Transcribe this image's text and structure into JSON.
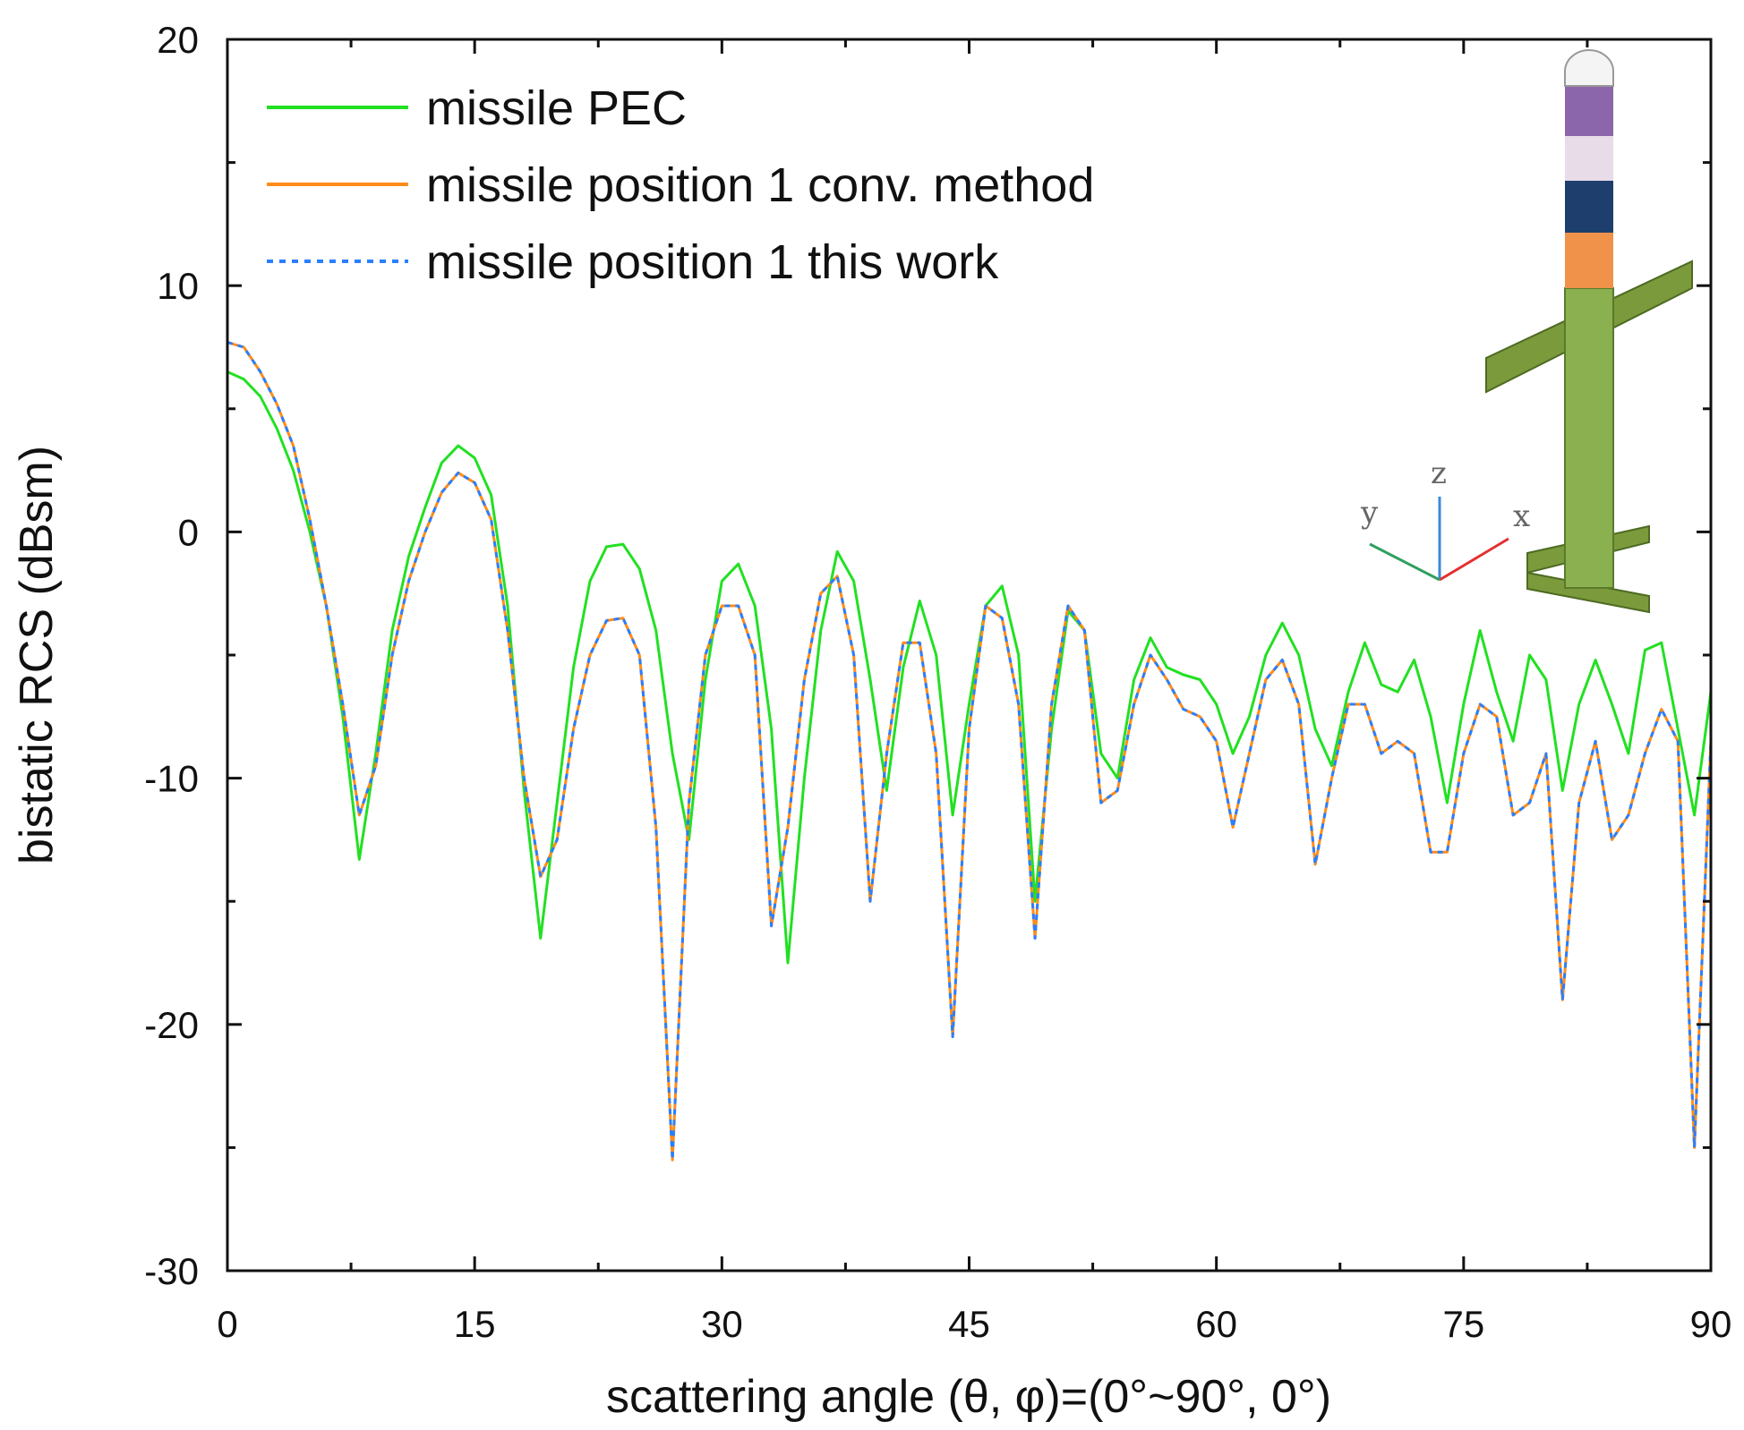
{
  "chart_data": {
    "type": "line",
    "title": "",
    "xlabel": "scattering angle (θ, φ)=(0°~90°, 0°)",
    "ylabel": "bistatic RCS (dBsm)",
    "xlim": [
      0,
      90
    ],
    "ylim": [
      -30,
      20
    ],
    "xticks": [
      0,
      15,
      30,
      45,
      60,
      75,
      90
    ],
    "yticks": [
      -30,
      -20,
      -10,
      0,
      10,
      20
    ],
    "grid": false,
    "legend_position": "top-left",
    "x": [
      0,
      1,
      2,
      3,
      4,
      5,
      6,
      7,
      8,
      9,
      10,
      11,
      12,
      13,
      14,
      15,
      16,
      17,
      18,
      19,
      20,
      21,
      22,
      23,
      24,
      25,
      26,
      27,
      28,
      29,
      30,
      31,
      32,
      33,
      34,
      35,
      36,
      37,
      38,
      39,
      40,
      41,
      42,
      43,
      44,
      45,
      46,
      47,
      48,
      49,
      50,
      51,
      52,
      53,
      54,
      55,
      56,
      57,
      58,
      59,
      60,
      61,
      62,
      63,
      64,
      65,
      66,
      67,
      68,
      69,
      70,
      71,
      72,
      73,
      74,
      75,
      76,
      77,
      78,
      79,
      80,
      81,
      82,
      83,
      84,
      85,
      86,
      87,
      88,
      89,
      90
    ],
    "series": [
      {
        "name": "missile PEC",
        "color": "#22e022",
        "dash": "solid",
        "values": [
          6.5,
          6.2,
          5.5,
          4.2,
          2.5,
          0,
          -3,
          -7.5,
          -13.3,
          -9,
          -4,
          -1,
          1,
          2.8,
          3.5,
          3,
          1.5,
          -3,
          -10.5,
          -16.5,
          -11,
          -5.5,
          -2,
          -0.6,
          -0.5,
          -1.5,
          -4,
          -9,
          -12.5,
          -6,
          -2,
          -1.3,
          -3,
          -8,
          -17.5,
          -10,
          -4,
          -0.8,
          -2,
          -6,
          -10.5,
          -5.5,
          -2.8,
          -5,
          -11.5,
          -7,
          -3,
          -2.2,
          -5,
          -15,
          -8,
          -3.2,
          -4,
          -9,
          -10,
          -6,
          -4.3,
          -5.5,
          -5.8,
          -6,
          -7,
          -9,
          -7.5,
          -5,
          -3.7,
          -5,
          -8,
          -9.5,
          -6.5,
          -4.5,
          -6.2,
          -6.5,
          -5.2,
          -7.5,
          -11,
          -7,
          -4,
          -6.5,
          -8.5,
          -5,
          -6,
          -10.5,
          -7,
          -5.2,
          -7,
          -9,
          -4.8,
          -4.5,
          -8,
          -11.5,
          -6.5
        ]
      },
      {
        "name": "missile position 1 conv. method",
        "color": "#ff8c1a",
        "dash": "solid",
        "values": [
          7.7,
          7.5,
          6.5,
          5.2,
          3.5,
          0.5,
          -3,
          -7,
          -11.5,
          -9.5,
          -5,
          -2,
          0,
          1.6,
          2.4,
          2,
          0.5,
          -4,
          -10,
          -14,
          -12.5,
          -8,
          -5,
          -3.6,
          -3.5,
          -5,
          -12,
          -25.5,
          -11,
          -5,
          -3,
          -3,
          -5,
          -16,
          -12,
          -6,
          -2.5,
          -1.8,
          -5,
          -15,
          -9,
          -4.5,
          -4.5,
          -9,
          -20.5,
          -8,
          -3,
          -3.5,
          -7,
          -16.5,
          -7,
          -3,
          -4,
          -11,
          -10.5,
          -7,
          -5,
          -6,
          -7.2,
          -7.5,
          -8.5,
          -12,
          -9,
          -6,
          -5.2,
          -7,
          -13.5,
          -10,
          -7,
          -7,
          -9,
          -8.5,
          -9,
          -13,
          -13,
          -9,
          -7,
          -7.5,
          -11.5,
          -11,
          -9,
          -19,
          -11,
          -8.5,
          -12.5,
          -11.5,
          -9,
          -7.2,
          -8.5,
          -25,
          -8.5
        ]
      },
      {
        "name": "missile position 1 this work",
        "color": "#2a7fff",
        "dash": "dotted",
        "values": [
          7.7,
          7.5,
          6.5,
          5.2,
          3.5,
          0.5,
          -3,
          -7,
          -11.5,
          -9.5,
          -5,
          -2,
          0,
          1.6,
          2.4,
          2,
          0.5,
          -4,
          -10,
          -14,
          -12.5,
          -8,
          -5,
          -3.6,
          -3.5,
          -5,
          -12,
          -25.5,
          -11,
          -5,
          -3,
          -3,
          -5,
          -16,
          -12,
          -6,
          -2.5,
          -1.8,
          -5,
          -15,
          -9,
          -4.5,
          -4.5,
          -9,
          -20.5,
          -8,
          -3,
          -3.5,
          -7,
          -16.5,
          -7,
          -3,
          -4,
          -11,
          -10.5,
          -7,
          -5,
          -6,
          -7.2,
          -7.5,
          -8.5,
          -12,
          -9,
          -6,
          -5.2,
          -7,
          -13.5,
          -10,
          -7,
          -7,
          -9,
          -8.5,
          -9,
          -13,
          -13,
          -9,
          -7,
          -7.5,
          -11.5,
          -11,
          -9,
          -19,
          -11,
          -8.5,
          -12.5,
          -11.5,
          -9,
          -7.2,
          -8.5,
          -25,
          -8.5
        ]
      }
    ]
  },
  "inset": {
    "axis_labels": [
      "x",
      "y",
      "z"
    ]
  }
}
